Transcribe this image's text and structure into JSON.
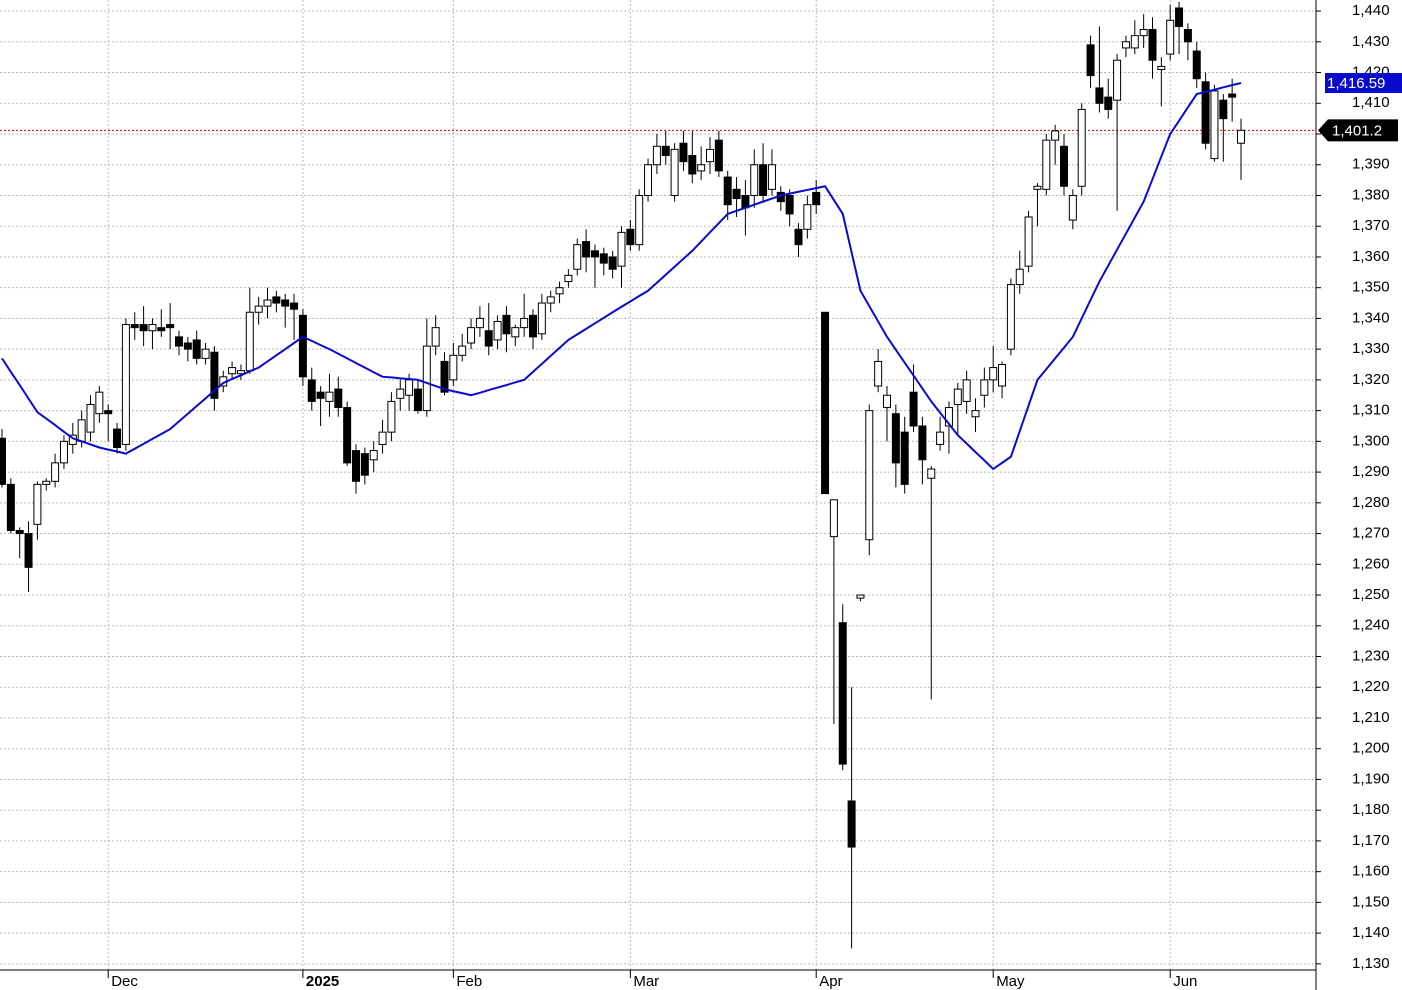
{
  "chart_data": {
    "type": "candlestick",
    "categories": [
      null,
      null,
      null,
      null,
      null,
      null,
      null,
      null,
      null,
      null,
      null,
      null,
      "Dec",
      null,
      null,
      null,
      null,
      null,
      null,
      null,
      null,
      null,
      null,
      null,
      null,
      null,
      null,
      null,
      null,
      null,
      null,
      null,
      null,
      null,
      "2025",
      null,
      null,
      null,
      null,
      null,
      null,
      null,
      null,
      null,
      null,
      null,
      null,
      null,
      null,
      null,
      null,
      "Feb",
      null,
      null,
      null,
      null,
      null,
      null,
      null,
      null,
      null,
      null,
      null,
      null,
      null,
      null,
      null,
      null,
      null,
      null,
      null,
      "Mar",
      null,
      null,
      null,
      null,
      null,
      null,
      null,
      null,
      null,
      null,
      null,
      null,
      null,
      null,
      null,
      null,
      null,
      null,
      null,
      null,
      "Apr",
      null,
      null,
      null,
      null,
      null,
      null,
      null,
      null,
      null,
      null,
      null,
      null,
      null,
      null,
      null,
      null,
      null,
      null,
      null,
      "May",
      null,
      null,
      null,
      null,
      null,
      null,
      null,
      null,
      null,
      null,
      null,
      null,
      null,
      null,
      null,
      null,
      null,
      null,
      null,
      "Jun",
      null,
      null,
      null,
      null,
      null,
      null,
      null,
      null
    ],
    "open": [
      1301,
      1286,
      1271,
      1270,
      1273,
      1286,
      1287,
      1293,
      1299,
      1300,
      1303,
      1309,
      1310,
      1304,
      1299,
      1338,
      1338,
      1336,
      1337,
      1338,
      1334,
      1332,
      1333,
      1327,
      1329,
      1318,
      1322,
      1322,
      1323,
      1342,
      1344,
      1347,
      1346,
      1345,
      1341,
      1320,
      1316,
      1313,
      1317,
      1311,
      1297,
      1296,
      1294,
      1299,
      1303,
      1314,
      1315,
      1317,
      1310,
      1331,
      1326,
      1320,
      1328,
      1332,
      1337,
      1336,
      1333,
      1341,
      1334,
      1337,
      1341,
      1335,
      1345,
      1348,
      1352,
      1356,
      1365,
      1362,
      1361,
      1360,
      1357,
      1369,
      1364,
      1380,
      1390,
      1396,
      1380,
      1397,
      1393,
      1388,
      1391,
      1398,
      1386,
      1382,
      1380,
      1380,
      1390,
      1382,
      1381,
      1380,
      1369,
      1369,
      1381,
      1342,
      1269,
      1241,
      1183,
      1249,
      1268,
      1318,
      1311,
      1309,
      1303,
      1316,
      1305,
      1288,
      1299,
      1305,
      1312,
      1313,
      1308,
      1315,
      1320,
      1318,
      1330,
      1351,
      1357,
      1382,
      1382,
      1398,
      1396,
      1372,
      1383,
      1429,
      1415,
      1412,
      1411,
      1428,
      1428,
      1432,
      1434,
      1421,
      1426,
      1441,
      1434,
      1427,
      1417,
      1392,
      1411,
      1413,
      1397
    ],
    "high": [
      1304,
      1288,
      1272,
      1274,
      1287,
      1288,
      1296,
      1302,
      1306,
      1310,
      1315,
      1318,
      1312,
      1306,
      1340,
      1342,
      1344,
      1340,
      1343,
      1345,
      1336,
      1334,
      1336,
      1332,
      1331,
      1323,
      1326,
      1325,
      1350,
      1347,
      1350,
      1349,
      1348,
      1348,
      1343,
      1324,
      1318,
      1322,
      1321,
      1313,
      1299,
      1298,
      1300,
      1307,
      1316,
      1320,
      1322,
      1320,
      1340,
      1341,
      1329,
      1332,
      1335,
      1340,
      1344,
      1345,
      1341,
      1344,
      1338,
      1348,
      1343,
      1348,
      1349,
      1352,
      1356,
      1366,
      1369,
      1364,
      1363,
      1362,
      1370,
      1372,
      1382,
      1392,
      1400,
      1401,
      1397,
      1401,
      1401,
      1396,
      1399,
      1401,
      1388,
      1386,
      1385,
      1395,
      1397,
      1395,
      1383,
      1382,
      1371,
      1380,
      1385,
      1342,
      1281,
      1247,
      1220,
      1250,
      1312,
      1330,
      1318,
      1312,
      1308,
      1325,
      1308,
      1292,
      1308,
      1313,
      1319,
      1323,
      1314,
      1324,
      1331,
      1326,
      1353,
      1362,
      1375,
      1384,
      1400,
      1403,
      1400,
      1382,
      1410,
      1432,
      1435,
      1418,
      1426,
      1432,
      1437,
      1439,
      1438,
      1425,
      1442,
      1443,
      1436,
      1430,
      1420,
      1416,
      1413,
      1418,
      1405
    ],
    "low": [
      1285,
      1270,
      1262,
      1251,
      1268,
      1284,
      1285,
      1291,
      1296,
      1298,
      1300,
      1306,
      1300,
      1296,
      1297,
      1333,
      1331,
      1330,
      1334,
      1330,
      1328,
      1326,
      1325,
      1325,
      1310,
      1316,
      1320,
      1320,
      1322,
      1338,
      1340,
      1342,
      1337,
      1333,
      1318,
      1310,
      1305,
      1308,
      1308,
      1292,
      1283,
      1286,
      1290,
      1296,
      1300,
      1310,
      1310,
      1309,
      1308,
      1328,
      1315,
      1318,
      1326,
      1330,
      1334,
      1328,
      1330,
      1329,
      1331,
      1334,
      1330,
      1333,
      1342,
      1345,
      1350,
      1354,
      1355,
      1350,
      1354,
      1353,
      1350,
      1362,
      1362,
      1378,
      1387,
      1390,
      1378,
      1388,
      1384,
      1385,
      1387,
      1386,
      1372,
      1373,
      1367,
      1376,
      1378,
      1380,
      1375,
      1370,
      1360,
      1366,
      1374,
      1283,
      1208,
      1193,
      1135,
      1248,
      1263,
      1316,
      1300,
      1285,
      1283,
      1303,
      1286,
      1216,
      1297,
      1296,
      1302,
      1309,
      1303,
      1311,
      1316,
      1314,
      1328,
      1348,
      1355,
      1370,
      1380,
      1390,
      1380,
      1369,
      1380,
      1415,
      1407,
      1405,
      1375,
      1425,
      1426,
      1428,
      1418,
      1409,
      1424,
      1426,
      1424,
      1415,
      1395,
      1391,
      1391,
      1404,
      1385
    ],
    "close": [
      1286,
      1271,
      1270,
      1259,
      1286,
      1287,
      1293,
      1300,
      1302,
      1307,
      1312,
      1316,
      1309,
      1298,
      1338,
      1337,
      1336,
      1338,
      1336,
      1337,
      1331,
      1330,
      1327,
      1330,
      1314,
      1321,
      1324,
      1323,
      1342,
      1344,
      1346,
      1345,
      1344,
      1343,
      1321,
      1313,
      1314,
      1316,
      1311,
      1293,
      1287,
      1289,
      1297,
      1303,
      1313,
      1317,
      1320,
      1310,
      1331,
      1337,
      1316,
      1328,
      1331,
      1337,
      1340,
      1331,
      1339,
      1335,
      1337,
      1340,
      1334,
      1345,
      1347,
      1350,
      1354,
      1364,
      1360,
      1360,
      1358,
      1356,
      1368,
      1364,
      1380,
      1390,
      1396,
      1393,
      1395,
      1391,
      1387,
      1390,
      1395,
      1388,
      1377,
      1379,
      1376,
      1390,
      1380,
      1390,
      1378,
      1374,
      1364,
      1377,
      1377,
      1283,
      1281,
      1195,
      1168,
      1250,
      1310,
      1326,
      1315,
      1293,
      1286,
      1305,
      1294,
      1291,
      1303,
      1311,
      1317,
      1320,
      1310,
      1320,
      1324,
      1325,
      1351,
      1356,
      1373,
      1383,
      1398,
      1401,
      1383,
      1380,
      1408,
      1419,
      1410,
      1408,
      1424,
      1430,
      1432,
      1434,
      1424,
      1422,
      1437,
      1435,
      1430,
      1418,
      1397,
      1414,
      1405,
      1412,
      1401.2
    ],
    "close_labels": [
      null,
      null,
      null,
      null,
      null,
      null,
      null,
      null,
      null,
      null,
      null,
      null,
      null,
      null,
      null,
      null,
      null,
      null,
      null,
      null,
      null,
      null,
      null,
      null,
      null,
      null,
      null,
      null,
      null,
      null,
      null,
      null,
      null,
      null,
      null,
      null,
      null,
      null,
      null,
      null,
      null,
      null,
      null,
      null,
      null,
      null,
      null,
      null,
      null,
      null,
      null,
      null,
      null,
      null,
      null,
      null,
      null,
      null,
      null,
      null,
      null,
      null,
      null,
      null,
      null,
      null,
      null,
      null,
      null,
      null,
      null,
      null,
      null,
      null,
      null,
      null,
      null,
      null,
      null,
      null,
      null,
      null,
      null,
      null,
      null,
      null,
      null,
      null,
      null,
      null,
      null,
      null,
      null,
      null,
      null,
      null,
      null,
      null,
      null,
      null,
      null,
      null,
      null,
      null,
      null,
      null,
      null,
      null,
      null,
      null,
      null,
      null,
      null,
      null,
      null,
      null,
      null,
      null,
      null,
      null,
      null,
      null,
      null,
      null,
      null,
      null,
      null,
      null,
      null,
      null,
      null,
      null,
      null,
      null,
      null,
      null,
      null,
      null,
      null,
      null,
      "1,401.2"
    ],
    "up_color": "#ffffff",
    "down_color": "#000000",
    "last_line_color": "#cc0000",
    "ma": {
      "type": "line",
      "color": "#0a0acc",
      "values": [
        1327,
        1322.6,
        1318.3,
        1313.9,
        1309.5,
        1307.4,
        1305.3,
        1303.1,
        1301,
        1300,
        1299,
        1298,
        1297.3,
        1296.7,
        1296,
        1297.6,
        1299.2,
        1300.8,
        1302.4,
        1304,
        1306.5,
        1309,
        1311.5,
        1314,
        1316.5,
        1319,
        1320.3,
        1321.5,
        1322.8,
        1324,
        1326,
        1328,
        1330,
        1332,
        1334,
        1332.7,
        1331.3,
        1330,
        1328.5,
        1327,
        1325.5,
        1324,
        1322.5,
        1321,
        1320.8,
        1320.5,
        1320.3,
        1320,
        1319,
        1318,
        1317,
        1316.3,
        1315.7,
        1315,
        1315.8,
        1316.7,
        1317.5,
        1318.3,
        1319.2,
        1320,
        1322.6,
        1325.2,
        1327.8,
        1330.4,
        1333,
        1334.8,
        1336.6,
        1338.4,
        1340.2,
        1342,
        1343.8,
        1345.5,
        1347.3,
        1349,
        1351.6,
        1354.2,
        1356.8,
        1359.4,
        1362,
        1365,
        1368,
        1371,
        1374,
        1375,
        1376,
        1377,
        1378,
        1379,
        1380,
        1380.6,
        1381.2,
        1381.8,
        1382.4,
        1383,
        1378.5,
        1374,
        1361.5,
        1349,
        1344,
        1339,
        1334,
        1329.8,
        1325.6,
        1321.4,
        1317.2,
        1313,
        1309.3,
        1305.7,
        1302,
        1299.3,
        1296.5,
        1293.8,
        1291,
        1293,
        1295,
        1303.3,
        1311.7,
        1320,
        1323.5,
        1327,
        1330.5,
        1334,
        1340,
        1346,
        1352,
        1357.2,
        1362.4,
        1367.6,
        1372.8,
        1378,
        1385.3,
        1392.7,
        1400,
        1404.3,
        1408.7,
        1413,
        1413.7,
        1414.4,
        1415.2,
        1415.9,
        1416.59
      ],
      "value_labels": [
        null,
        null,
        null,
        null,
        null,
        null,
        null,
        null,
        null,
        null,
        null,
        null,
        null,
        null,
        null,
        null,
        null,
        null,
        null,
        null,
        null,
        null,
        null,
        null,
        null,
        null,
        null,
        null,
        null,
        null,
        null,
        null,
        null,
        null,
        null,
        null,
        null,
        null,
        null,
        null,
        null,
        null,
        null,
        null,
        null,
        null,
        null,
        null,
        null,
        null,
        null,
        null,
        null,
        null,
        null,
        null,
        null,
        null,
        null,
        null,
        null,
        null,
        null,
        null,
        null,
        null,
        null,
        null,
        null,
        null,
        null,
        null,
        null,
        null,
        null,
        null,
        null,
        null,
        null,
        null,
        null,
        null,
        null,
        null,
        null,
        null,
        null,
        null,
        null,
        null,
        null,
        null,
        null,
        null,
        null,
        null,
        null,
        null,
        null,
        null,
        null,
        null,
        null,
        null,
        null,
        null,
        null,
        null,
        null,
        null,
        null,
        null,
        null,
        null,
        null,
        null,
        null,
        null,
        null,
        null,
        null,
        null,
        null,
        null,
        null,
        null,
        null,
        null,
        null,
        null,
        null,
        null,
        null,
        null,
        null,
        null,
        null,
        null,
        null,
        null,
        "1,416.59"
      ]
    },
    "ylim": [
      1128,
      1443.6
    ],
    "yticks": [
      {
        "value": 1130,
        "label": "1,130"
      },
      {
        "value": 1140,
        "label": "1,140"
      },
      {
        "value": 1150,
        "label": "1,150"
      },
      {
        "value": 1160,
        "label": "1,160"
      },
      {
        "value": 1170,
        "label": "1,170"
      },
      {
        "value": 1180,
        "label": "1,180"
      },
      {
        "value": 1190,
        "label": "1,190"
      },
      {
        "value": 1200,
        "label": "1,200"
      },
      {
        "value": 1210,
        "label": "1,210"
      },
      {
        "value": 1220,
        "label": "1,220"
      },
      {
        "value": 1230,
        "label": "1,230"
      },
      {
        "value": 1240,
        "label": "1,240"
      },
      {
        "value": 1250,
        "label": "1,250"
      },
      {
        "value": 1260,
        "label": "1,260"
      },
      {
        "value": 1270,
        "label": "1,270"
      },
      {
        "value": 1280,
        "label": "1,280"
      },
      {
        "value": 1290,
        "label": "1,290"
      },
      {
        "value": 1300,
        "label": "1,300"
      },
      {
        "value": 1310,
        "label": "1,310"
      },
      {
        "value": 1320,
        "label": "1,320"
      },
      {
        "value": 1330,
        "label": "1,330"
      },
      {
        "value": 1340,
        "label": "1,340"
      },
      {
        "value": 1350,
        "label": "1,350"
      },
      {
        "value": 1360,
        "label": "1,360"
      },
      {
        "value": 1370,
        "label": "1,370"
      },
      {
        "value": 1380,
        "label": "1,380"
      },
      {
        "value": 1390,
        "label": "1,390"
      },
      {
        "value": 1400,
        "label": "1,400"
      },
      {
        "value": 1410,
        "label": "1,410"
      },
      {
        "value": 1420,
        "label": "1,420"
      },
      {
        "value": 1430,
        "label": "1,430"
      },
      {
        "value": 1440,
        "label": "1,440"
      }
    ],
    "grid": true
  }
}
